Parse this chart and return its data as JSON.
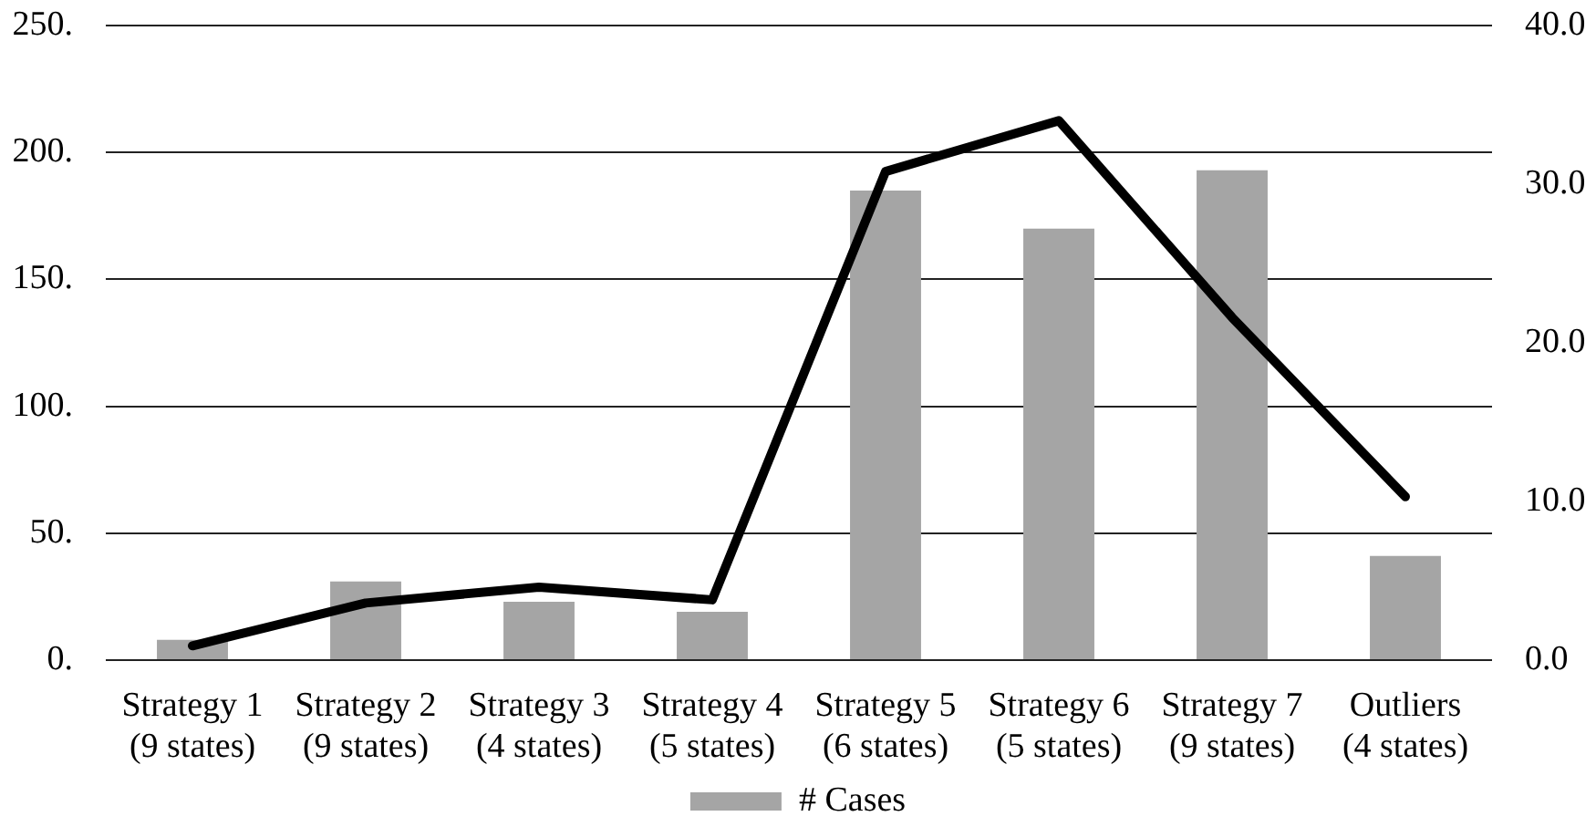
{
  "chart_data": {
    "type": "bar",
    "categories": [
      "Strategy 1\n(9 states)",
      "Strategy 2\n(9 states)",
      "Strategy 3\n(4 states)",
      "Strategy 4\n(5 states)",
      "Strategy 5\n(6 states)",
      "Strategy 6\n(5 states)",
      "Strategy 7\n(9 states)",
      "Outliers\n(4 states)"
    ],
    "series": [
      {
        "name": "# Cases",
        "color": "#a5a5a5",
        "values": [
          8,
          31,
          23,
          19,
          185,
          170,
          193,
          41
        ]
      },
      {
        "type": "line",
        "color": "#000000",
        "axis": "y2",
        "values": [
          0.9,
          3.6,
          4.6,
          3.8,
          30.8,
          34.0,
          21.6,
          10.3
        ]
      }
    ],
    "ylim": [
      0,
      250
    ],
    "yticks": [
      {
        "value": 0,
        "label": "0."
      },
      {
        "value": 50,
        "label": "50."
      },
      {
        "value": 100,
        "label": "100."
      },
      {
        "value": 150,
        "label": "150."
      },
      {
        "value": 200,
        "label": "200."
      },
      {
        "value": 250,
        "label": "250."
      }
    ],
    "y2lim": [
      0,
      40
    ],
    "y2ticks": [
      {
        "value": 0,
        "label": "0.0"
      },
      {
        "value": 10,
        "label": "10.0"
      },
      {
        "value": 20,
        "label": "20.0"
      },
      {
        "value": 30,
        "label": "30.0"
      },
      {
        "value": 40,
        "label": "40.0"
      }
    ],
    "grid": "y",
    "legend": "bottom",
    "marker": "none",
    "line_style": "solid"
  }
}
